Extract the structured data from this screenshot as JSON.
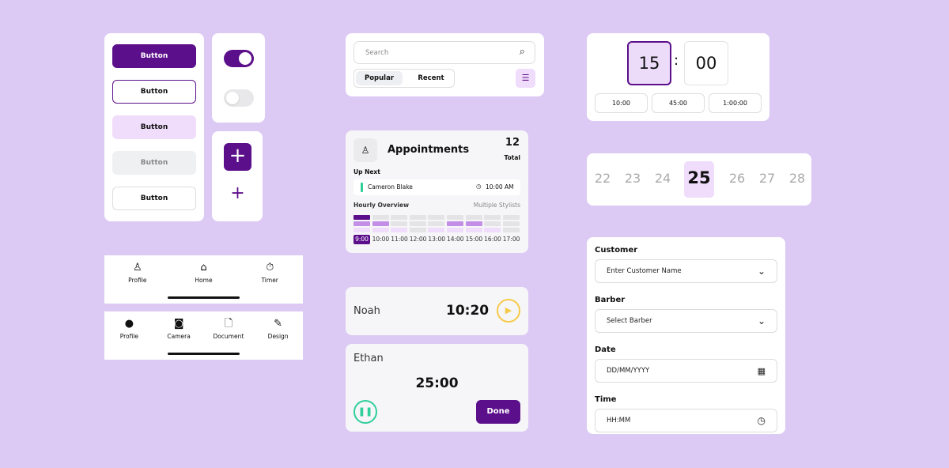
{
  "colors": {
    "primary": "#5c0f8b",
    "light": "#f0dcfb",
    "accent_green": "#2fcf9a",
    "accent_yellow": "#f7c948"
  },
  "buttons": [
    "Button",
    "Button",
    "Button",
    "Button",
    "Button"
  ],
  "nav1": [
    {
      "icon": "person-icon",
      "label": "Profile"
    },
    {
      "icon": "home-icon",
      "label": "Home"
    },
    {
      "icon": "timer-icon",
      "label": "Timer"
    }
  ],
  "nav2": [
    {
      "icon": "profile-icon",
      "label": "Profile"
    },
    {
      "icon": "camera-icon",
      "label": "Camera"
    },
    {
      "icon": "document-icon",
      "label": "Document"
    },
    {
      "icon": "design-icon",
      "label": "Design"
    }
  ],
  "search": {
    "placeholder": "Search",
    "tabs": [
      "Popular",
      "Recent"
    ],
    "active_tab": "Popular"
  },
  "appointments": {
    "title": "Appointments",
    "count": "12",
    "count_label": "Total",
    "up_next_label": "Up Next",
    "next_name": "Cameron Blake",
    "next_time": "10:00 AM",
    "overview_label": "Hourly Overview",
    "overview_filter": "Multiple Stylists",
    "hours": [
      "9:00",
      "10:00",
      "11:00",
      "12:00",
      "13:00",
      "14:00",
      "15:00",
      "16:00",
      "17:00"
    ],
    "active_hour": "9:00",
    "levels": [
      [
        3,
        0,
        0,
        0,
        0,
        0,
        0,
        0,
        0
      ],
      [
        2,
        2,
        0,
        0,
        0,
        2,
        2,
        0,
        0
      ],
      [
        1,
        1,
        1,
        0,
        1,
        1,
        1,
        1,
        0
      ]
    ]
  },
  "timers": [
    {
      "name": "Noah",
      "time": "10:20",
      "state": "paused"
    },
    {
      "name": "Ethan",
      "time": "25:00",
      "state": "running",
      "action": "Done"
    }
  ],
  "time_picker": {
    "hours": "15",
    "sep": ":",
    "minutes": "00",
    "presets": [
      "10:00",
      "45:00",
      "1:00:00"
    ]
  },
  "dates": {
    "days": [
      "22",
      "23",
      "24",
      "25",
      "26",
      "27",
      "28"
    ],
    "selected": "25"
  },
  "form": {
    "customer_label": "Customer",
    "customer_placeholder": "Enter Customer Name",
    "barber_label": "Barber",
    "barber_placeholder": "Select Barber",
    "date_label": "Date",
    "date_placeholder": "DD/MM/YYYY",
    "time_label": "Time",
    "time_placeholder": "HH:MM"
  }
}
